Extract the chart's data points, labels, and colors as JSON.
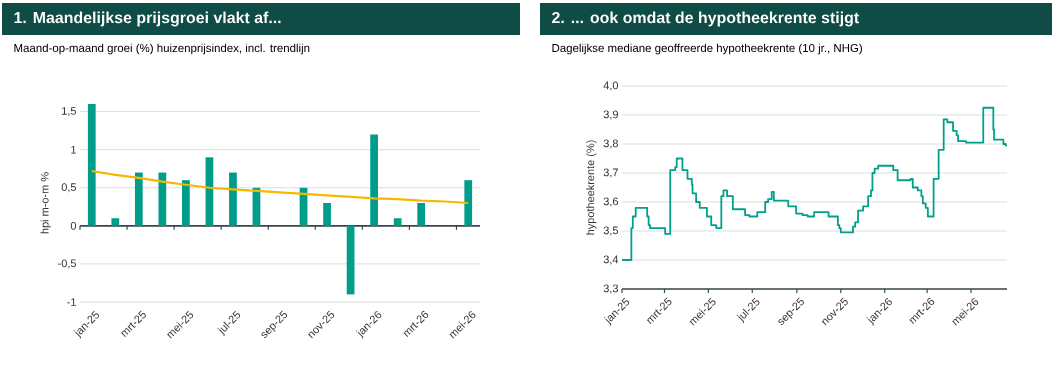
{
  "chart_data": [
    {
      "type": "bar",
      "title": "1. Maandelijkse prijsgroei vlakt af...",
      "subtitle": "Maand-op-maand groei (%) huizenprijsindex, incl. trendlijn",
      "ylabel": "hpi m-o-m %",
      "categories": [
        "jan-25",
        null,
        "mrt-25",
        null,
        "mei-25",
        null,
        "jul-25",
        null,
        "sep-25",
        null,
        "nov-25",
        null,
        "jan-26",
        null,
        "mrt-26",
        null,
        "mei-26"
      ],
      "series": [
        {
          "type": "bar",
          "color": "#009e8a",
          "values": [
            1.6,
            0.1,
            0.7,
            0.7,
            0.6,
            0.9,
            0.7,
            0.5,
            null,
            0.5,
            0.3,
            -0.9,
            1.2,
            0.1,
            0.3,
            null,
            0.6
          ]
        },
        {
          "type": "line",
          "color": "#f5b800",
          "values": [
            0.72,
            0.67,
            0.63,
            0.58,
            0.54,
            0.5,
            0.48,
            0.46,
            0.44,
            0.42,
            0.4,
            0.38,
            0.36,
            0.35,
            0.33,
            0.32,
            0.3
          ]
        }
      ],
      "ylim": [
        -1,
        1.6
      ],
      "yticks": [
        -1,
        {
          "value": -0.5,
          "label": "-0,5"
        },
        0,
        {
          "value": 0.5,
          "label": "0,5"
        },
        1,
        {
          "value": 1.5,
          "label": "1,5"
        }
      ],
      "grid": "y"
    },
    {
      "type": "step",
      "title": "2. ... ook omdat de hypotheekrente stijgt",
      "subtitle": "Dagelijkse mediane geoffreerde hypotheekrente (10 jr., NHG)",
      "ylabel": "hypotheekrente (%)",
      "x": [
        "2025-01-01",
        "2025-01-14",
        "2025-01-16",
        "2025-01-20",
        "2025-02-05",
        "2025-02-07",
        "2025-02-09",
        "2025-03-02",
        "2025-03-09",
        "2025-03-16",
        "2025-03-18",
        "2025-03-26",
        "2025-04-02",
        "2025-04-08",
        "2025-04-09",
        "2025-04-14",
        "2025-04-19",
        "2025-04-29",
        "2025-05-05",
        "2025-05-12",
        "2025-05-19",
        "2025-05-22",
        "2025-05-27",
        "2025-06-04",
        "2025-06-21",
        "2025-06-27",
        "2025-07-08",
        "2025-07-19",
        "2025-07-23",
        "2025-07-28",
        "2025-07-31",
        "2025-08-20",
        "2025-08-31",
        "2025-09-09",
        "2025-09-16",
        "2025-09-25",
        "2025-10-15",
        "2025-10-28",
        "2025-10-30",
        "2025-11-01",
        "2025-11-18",
        "2025-11-21",
        "2025-11-25",
        "2025-12-02",
        "2025-12-09",
        "2025-12-13",
        "2025-12-15",
        "2025-12-18",
        "2025-12-23",
        "2026-01-13",
        "2026-01-19",
        "2026-02-06",
        "2026-02-09",
        "2026-02-16",
        "2026-02-21",
        "2026-02-23",
        "2026-02-27",
        "2026-03-02",
        "2026-03-10",
        "2026-03-17",
        "2026-03-24",
        "2026-03-29",
        "2026-04-06",
        "2026-04-11",
        "2026-04-13",
        "2026-04-24",
        "2026-05-18",
        "2026-06-01",
        "2026-06-02",
        "2026-06-15",
        "2026-06-18",
        "2026-06-20"
      ],
      "series": [
        {
          "color": "#00a08c",
          "values": [
            3.4,
            3.51,
            3.55,
            3.58,
            3.55,
            3.52,
            3.51,
            3.49,
            3.71,
            3.72,
            3.75,
            3.71,
            3.68,
            3.66,
            3.63,
            3.6,
            3.58,
            3.55,
            3.52,
            3.51,
            3.62,
            3.64,
            3.62,
            3.575,
            3.555,
            3.55,
            3.565,
            3.6,
            3.61,
            3.635,
            3.605,
            3.585,
            3.56,
            3.555,
            3.55,
            3.565,
            3.55,
            3.52,
            3.51,
            3.495,
            3.515,
            3.53,
            3.57,
            3.585,
            3.62,
            3.64,
            3.7,
            3.715,
            3.725,
            3.71,
            3.675,
            3.68,
            3.65,
            3.64,
            3.62,
            3.595,
            3.58,
            3.55,
            3.68,
            3.78,
            3.885,
            3.875,
            3.845,
            3.83,
            3.81,
            3.805,
            3.925,
            3.85,
            3.815,
            3.8,
            3.795,
            3.795
          ]
        }
      ],
      "xlim": [
        "2025-01-01",
        "2026-06-20"
      ],
      "xticks": [
        {
          "value": "2025-01-01",
          "label": "jan-25"
        },
        {
          "value": "2025-03-01",
          "label": "mrt-25"
        },
        {
          "value": "2025-05-01",
          "label": "mei-25"
        },
        {
          "value": "2025-07-01",
          "label": "jul-25"
        },
        {
          "value": "2025-09-01",
          "label": "sep-25"
        },
        {
          "value": "2025-11-01",
          "label": "nov-25"
        },
        {
          "value": "2026-01-01",
          "label": "jan-26"
        },
        {
          "value": "2026-03-01",
          "label": "mrt-26"
        },
        {
          "value": "2026-05-01",
          "label": "mei-26"
        }
      ],
      "ylim": [
        3.3,
        4.0
      ],
      "yticks": [
        {
          "value": 3.3,
          "label": "3,3"
        },
        {
          "value": 3.4,
          "label": "3,4"
        },
        {
          "value": 3.5,
          "label": "3,5"
        },
        {
          "value": 3.6,
          "label": "3,6"
        },
        {
          "value": 3.7,
          "label": "3,7"
        },
        {
          "value": 3.8,
          "label": "3,8"
        },
        {
          "value": 3.9,
          "label": "3,9"
        },
        {
          "value": 4.0,
          "label": "4,0"
        }
      ],
      "grid": "y"
    }
  ]
}
